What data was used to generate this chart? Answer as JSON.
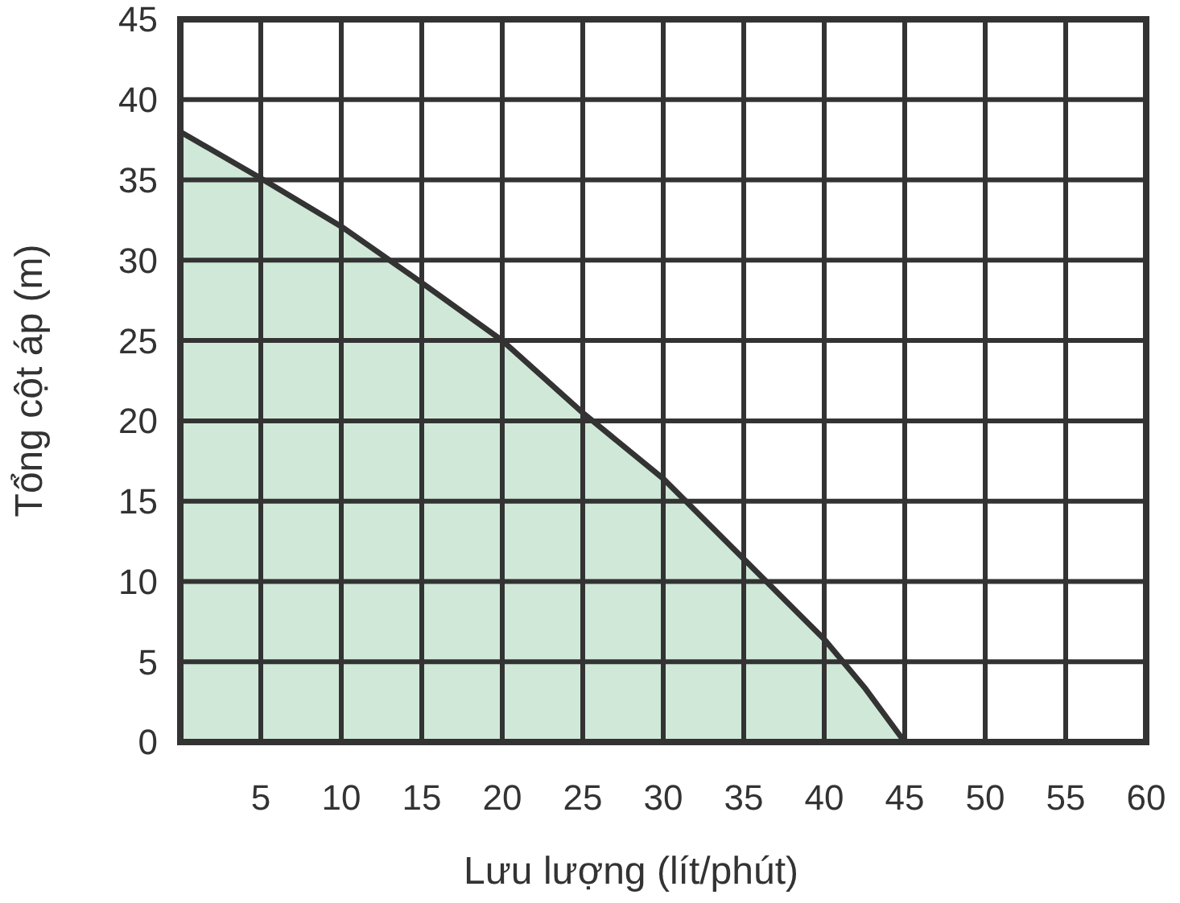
{
  "chart_data": {
    "type": "area",
    "xlabel": "Lưu lượng (lít/phút)",
    "ylabel": "Tổng cột áp (m)",
    "x": [
      0,
      5,
      10,
      15,
      20,
      25,
      30,
      35,
      40,
      42.5,
      45
    ],
    "series": [
      {
        "color": "#d0e8d8",
        "values": [
          38,
          35.1,
          32.1,
          28.6,
          25,
          20.5,
          16.4,
          11.4,
          6.4,
          3.4,
          0
        ]
      }
    ],
    "xlim": [
      0,
      60
    ],
    "xticks": [
      5,
      10,
      15,
      20,
      25,
      30,
      35,
      40,
      45,
      50,
      55,
      60
    ],
    "ylim": [
      0,
      45
    ],
    "yticks": [
      0,
      5,
      10,
      15,
      20,
      25,
      30,
      35,
      40,
      45
    ],
    "grid": true
  }
}
